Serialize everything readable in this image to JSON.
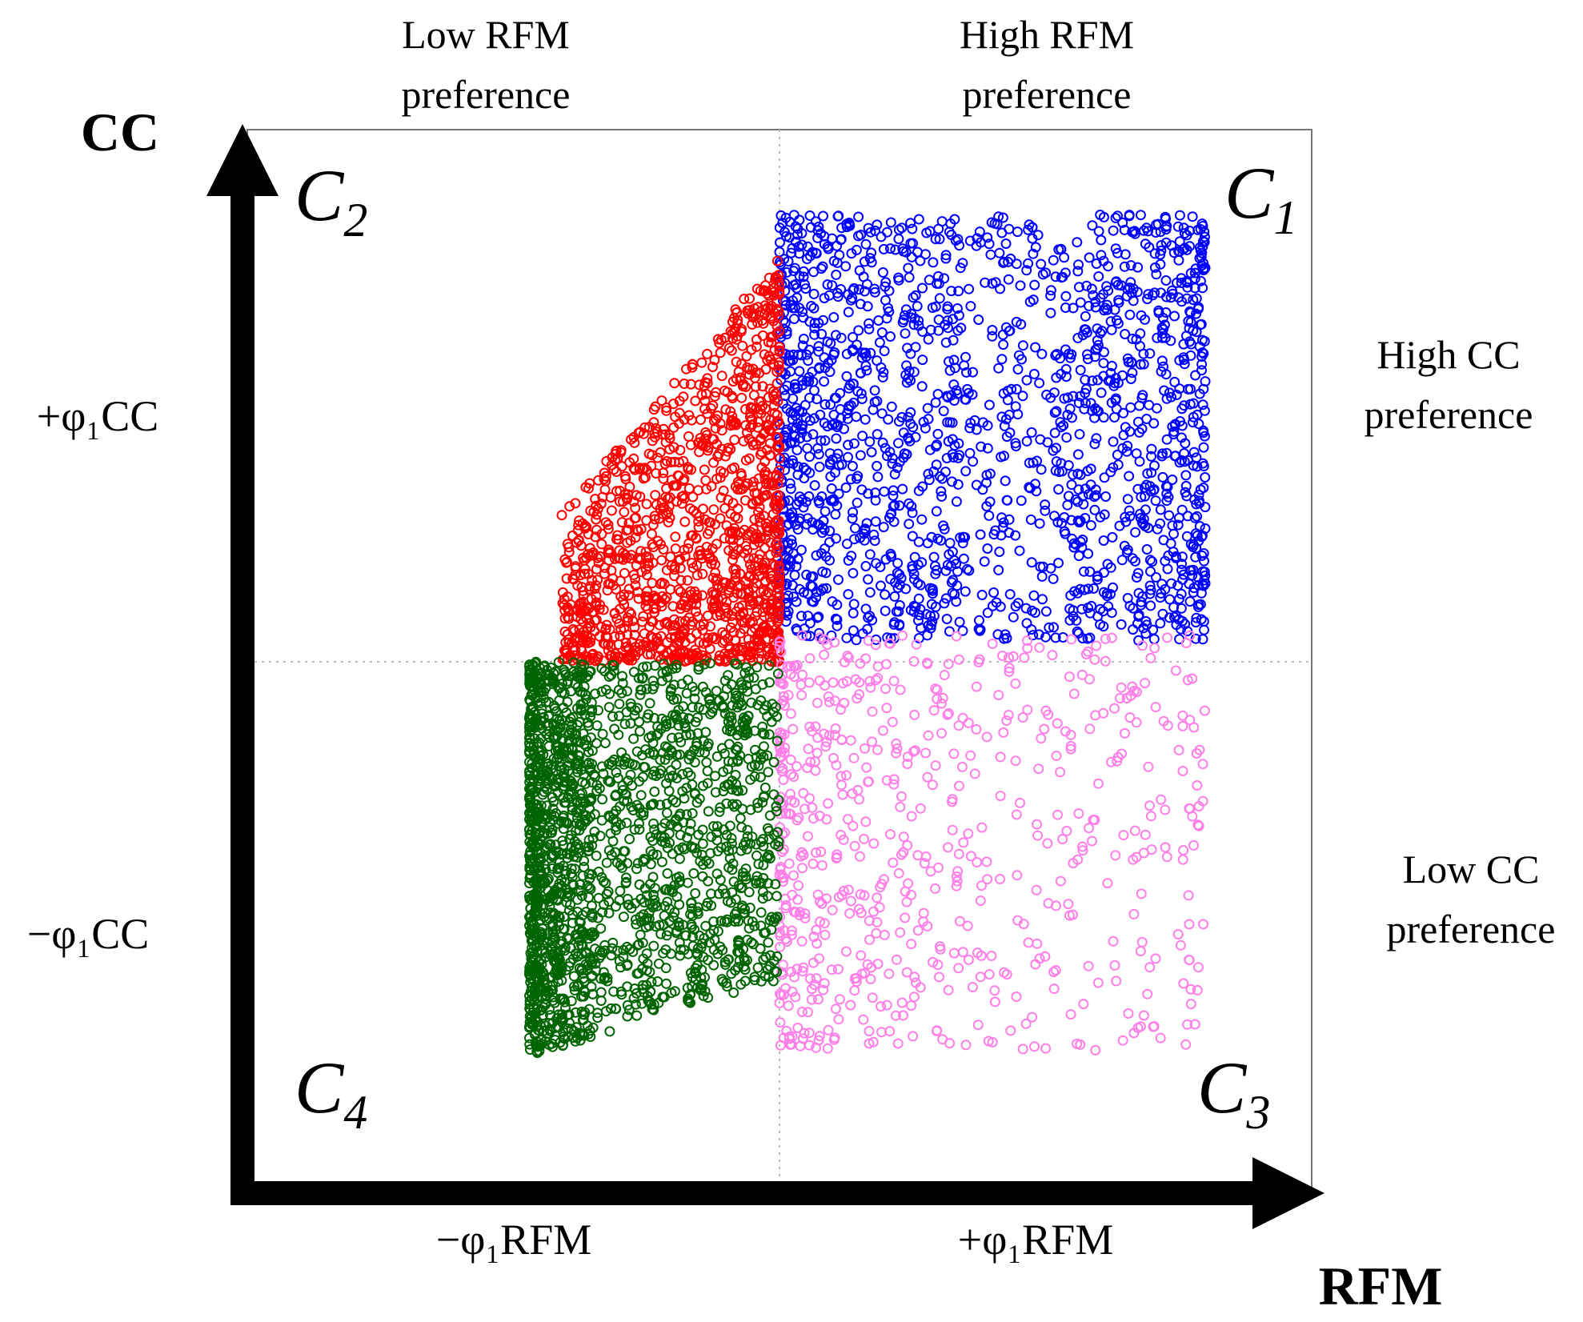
{
  "chart_data": {
    "type": "scatter",
    "title": "",
    "xlabel": "RFM",
    "ylabel": "CC",
    "xlim": [
      -1,
      1
    ],
    "ylim": [
      -1,
      1
    ],
    "grid": "dotted center lines",
    "x_ticks": [
      {
        "value": -0.5,
        "label": "−φ₁RFM"
      },
      {
        "value": 0.5,
        "label": "+φ₁RFM"
      }
    ],
    "y_ticks": [
      {
        "value": 0.5,
        "label": "+φ₁CC"
      },
      {
        "value": -0.5,
        "label": "−φ₁CC"
      }
    ],
    "annotations": {
      "top_left": [
        "Low RFM",
        "preference"
      ],
      "top_right": [
        "High RFM",
        "preference"
      ],
      "right_upper": [
        "High CC",
        "preference"
      ],
      "right_lower": [
        "Low CC",
        "preference"
      ]
    },
    "quadrant_labels": [
      {
        "name": "C",
        "sub": "1",
        "position": "top-right"
      },
      {
        "name": "C",
        "sub": "2",
        "position": "top-left"
      },
      {
        "name": "C",
        "sub": "3",
        "position": "bottom-right"
      },
      {
        "name": "C",
        "sub": "4",
        "position": "bottom-left"
      }
    ],
    "series": [
      {
        "name": "C1",
        "color": "#0000ff",
        "x_range": [
          0.0,
          0.8
        ],
        "y_range": [
          0.04,
          0.84
        ],
        "count": 1700,
        "density": "uniform, denser near x=0.1 and x=0.75"
      },
      {
        "name": "C2",
        "color": "#ff0000",
        "x_range": [
          -0.41,
          0.0
        ],
        "y_range": [
          0.0,
          0.76
        ],
        "count": 1300,
        "density": "denser toward x=-0.1, thinning with height"
      },
      {
        "name": "C3",
        "color": "#ff7fe8",
        "x_range": [
          0.0,
          0.8
        ],
        "y_range": [
          -0.73,
          0.05
        ],
        "count": 650,
        "density": "denser near x=0, sparse toward right"
      },
      {
        "name": "C4",
        "color": "#006400",
        "x_range": [
          -0.47,
          0.0
        ],
        "y_range": [
          -0.74,
          0.0
        ],
        "count": 1900,
        "density": "very dense, especially near x=-0.45"
      }
    ]
  }
}
